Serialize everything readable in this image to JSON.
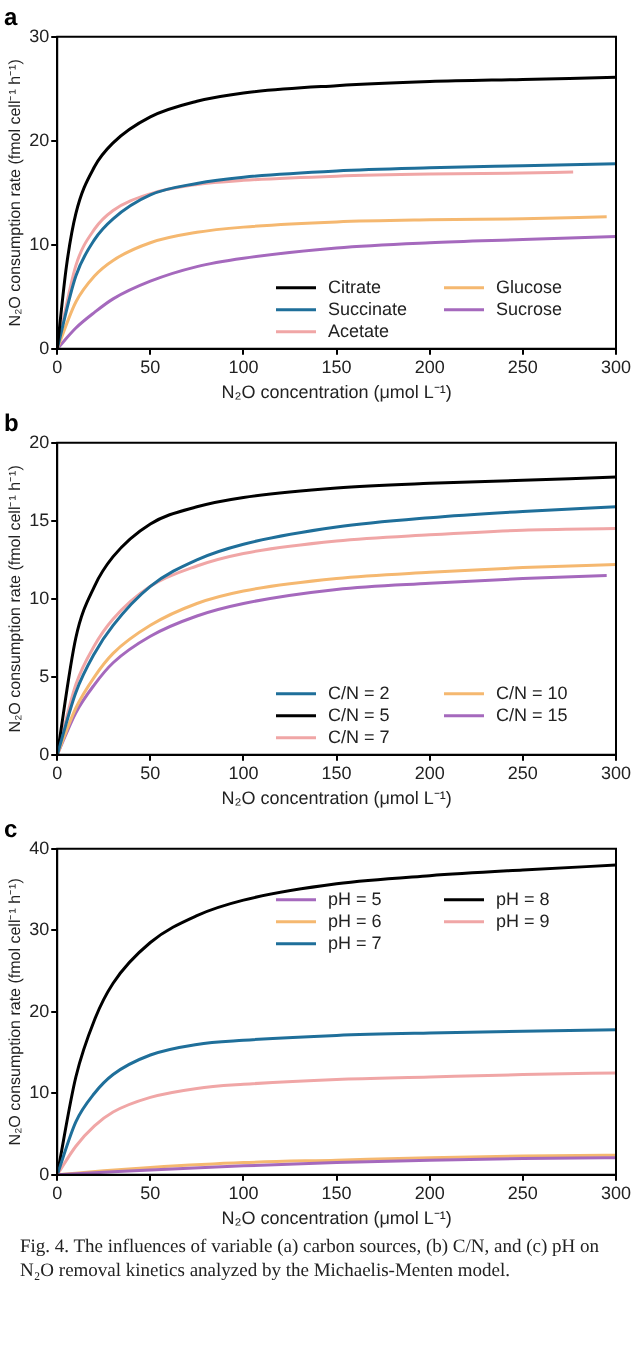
{
  "chart_data": [
    {
      "type": "line",
      "title": "a",
      "xlabel": "N₂O concentration (μmol L⁻¹)",
      "ylabel": "N₂O consumption rate (fmol cell⁻¹ h⁻¹)",
      "xlim": [
        0,
        300
      ],
      "xticks": [
        0,
        50,
        100,
        150,
        200,
        250,
        300
      ],
      "ylim": [
        0,
        30
      ],
      "yticks": [
        0,
        10,
        20,
        30
      ],
      "grid": false,
      "legend": "bottom right",
      "marker": "none",
      "line_style": "solid",
      "series": [
        {
          "name": "Citrate",
          "color": "#000000",
          "x": [
            0,
            5,
            10,
            20,
            30,
            50,
            75,
            100,
            150,
            200,
            250,
            300
          ],
          "values": [
            0,
            8,
            13,
            17.5,
            19.8,
            22.3,
            23.8,
            24.6,
            25.3,
            25.7,
            25.9,
            26.1
          ]
        },
        {
          "name": "Succinate",
          "color": "#1f6f9a",
          "x": [
            0,
            10,
            20,
            30,
            50,
            75,
            100,
            150,
            200,
            250,
            300
          ],
          "values": [
            0,
            7,
            10.5,
            12.5,
            14.8,
            15.9,
            16.5,
            17.1,
            17.4,
            17.6,
            17.8
          ]
        },
        {
          "name": "Acetate",
          "color": "#f0a6a6",
          "x": [
            0,
            10,
            20,
            30,
            50,
            75,
            100,
            150,
            200,
            250,
            277
          ],
          "values": [
            0,
            8,
            11.5,
            13.3,
            14.9,
            15.8,
            16.2,
            16.6,
            16.8,
            16.9,
            17
          ]
        },
        {
          "name": "Glucose",
          "color": "#f5b870",
          "x": [
            0,
            10,
            20,
            30,
            50,
            75,
            100,
            150,
            200,
            250,
            295
          ],
          "values": [
            0,
            4.5,
            7,
            8.5,
            10.2,
            11.2,
            11.7,
            12.2,
            12.4,
            12.5,
            12.7
          ]
        },
        {
          "name": "Sucrose",
          "color": "#a569bd",
          "x": [
            0,
            10,
            20,
            30,
            50,
            75,
            100,
            150,
            200,
            250,
            300
          ],
          "values": [
            0,
            2,
            3.5,
            4.8,
            6.5,
            7.9,
            8.7,
            9.7,
            10.2,
            10.5,
            10.8
          ]
        }
      ]
    },
    {
      "type": "line",
      "title": "b",
      "xlabel": "N₂O concentration (μmol L⁻¹)",
      "ylabel": "N₂O consumption rate (fmol cell⁻¹ h⁻¹)",
      "xlim": [
        0,
        300
      ],
      "xticks": [
        0,
        50,
        100,
        150,
        200,
        250,
        300
      ],
      "ylim": [
        0,
        20
      ],
      "yticks": [
        0,
        5,
        10,
        15,
        20
      ],
      "grid": false,
      "legend": "bottom right",
      "marker": "none",
      "line_style": "solid",
      "series": [
        {
          "name": "C/N = 2",
          "color": "#1f6f9a",
          "x": [
            0,
            10,
            20,
            30,
            50,
            75,
            100,
            150,
            200,
            250,
            300
          ],
          "values": [
            0,
            4,
            6.5,
            8.3,
            10.8,
            12.5,
            13.5,
            14.6,
            15.2,
            15.6,
            15.9
          ]
        },
        {
          "name": "C/N = 5",
          "color": "#000000",
          "x": [
            0,
            10,
            20,
            30,
            50,
            75,
            100,
            150,
            200,
            250,
            300
          ],
          "values": [
            0,
            7.5,
            10.8,
            12.7,
            14.8,
            15.9,
            16.5,
            17.1,
            17.4,
            17.6,
            17.8
          ]
        },
        {
          "name": "C/N = 7",
          "color": "#f0a6a6",
          "x": [
            0,
            10,
            20,
            30,
            50,
            75,
            100,
            150,
            200,
            250,
            300
          ],
          "values": [
            0,
            4.5,
            7,
            8.7,
            10.8,
            12.1,
            12.9,
            13.7,
            14.1,
            14.4,
            14.5
          ]
        },
        {
          "name": "C/N = 10",
          "color": "#f5b870",
          "x": [
            0,
            10,
            20,
            30,
            50,
            75,
            100,
            150,
            200,
            250,
            300
          ],
          "values": [
            0,
            3,
            5,
            6.5,
            8.3,
            9.7,
            10.5,
            11.3,
            11.7,
            12,
            12.2
          ]
        },
        {
          "name": "C/N = 15",
          "color": "#a569bd",
          "x": [
            0,
            10,
            20,
            30,
            50,
            75,
            100,
            150,
            200,
            250,
            295
          ],
          "values": [
            0,
            2.7,
            4.5,
            5.9,
            7.6,
            8.9,
            9.7,
            10.6,
            11,
            11.3,
            11.5
          ]
        }
      ]
    },
    {
      "type": "line",
      "title": "c",
      "xlabel": "N₂O concentration (μmol L⁻¹)",
      "ylabel": "N₂O consumption rate (fmol cell⁻¹ h⁻¹)",
      "xlim": [
        0,
        300
      ],
      "xticks": [
        0,
        50,
        100,
        150,
        200,
        250,
        300
      ],
      "ylim": [
        0,
        40
      ],
      "yticks": [
        0,
        10,
        20,
        30,
        40
      ],
      "grid": false,
      "legend": "top right",
      "marker": "none",
      "line_style": "solid",
      "annotations": [
        "Fig. 4. The influences of variable (a) carbon sources, (b) C/N, and (c) pH on N₂O removal kinetics analyzed by the Michaelis-Menten model."
      ],
      "series": [
        {
          "name": "pH = 5",
          "color": "#a569bd",
          "x": [
            0,
            25,
            50,
            100,
            150,
            200,
            250,
            300
          ],
          "values": [
            0,
            0.3,
            0.6,
            1.1,
            1.5,
            1.8,
            2,
            2.1
          ]
        },
        {
          "name": "pH = 6",
          "color": "#f5b870",
          "x": [
            0,
            25,
            50,
            100,
            150,
            200,
            250,
            300
          ],
          "values": [
            0,
            0.5,
            0.9,
            1.5,
            1.8,
            2.1,
            2.3,
            2.4
          ]
        },
        {
          "name": "pH = 7",
          "color": "#1f6f9a",
          "x": [
            0,
            10,
            20,
            30,
            50,
            75,
            100,
            150,
            200,
            250,
            300
          ],
          "values": [
            0,
            6.5,
            10,
            12.3,
            14.7,
            16,
            16.5,
            17.1,
            17.4,
            17.6,
            17.8
          ]
        },
        {
          "name": "pH = 8",
          "color": "#000000",
          "x": [
            0,
            10,
            20,
            30,
            50,
            75,
            100,
            150,
            200,
            250,
            300
          ],
          "values": [
            0,
            12,
            19,
            23.5,
            28.5,
            31.8,
            33.7,
            35.7,
            36.7,
            37.4,
            38
          ]
        },
        {
          "name": "pH = 9",
          "color": "#f0a6a6",
          "x": [
            0,
            10,
            20,
            30,
            50,
            75,
            100,
            150,
            200,
            250,
            300
          ],
          "values": [
            0,
            3.5,
            6,
            7.7,
            9.5,
            10.6,
            11.1,
            11.7,
            12,
            12.3,
            12.5
          ]
        }
      ]
    }
  ]
}
